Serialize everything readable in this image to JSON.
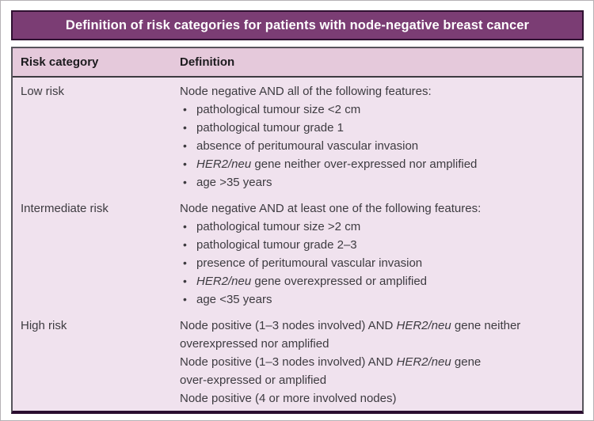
{
  "title": "Definition of risk categories for patients with node-negative breast cancer",
  "table": {
    "headers": {
      "category": "Risk category",
      "definition": "Definition"
    },
    "rows": [
      {
        "category": "Low risk",
        "lines": [
          {
            "type": "text",
            "segments": [
              {
                "text": "Node negative AND all of the following features:"
              }
            ]
          },
          {
            "type": "bullet",
            "segments": [
              {
                "text": "pathological tumour size <2 cm"
              }
            ]
          },
          {
            "type": "bullet",
            "segments": [
              {
                "text": "pathological tumour grade 1"
              }
            ]
          },
          {
            "type": "bullet",
            "segments": [
              {
                "text": "absence of peritumoural vascular invasion"
              }
            ]
          },
          {
            "type": "bullet",
            "segments": [
              {
                "text": "HER2/neu",
                "italic": true
              },
              {
                "text": " gene neither over-expressed nor amplified"
              }
            ]
          },
          {
            "type": "bullet",
            "segments": [
              {
                "text": "age >35 years"
              }
            ]
          }
        ]
      },
      {
        "category": "Intermediate risk",
        "lines": [
          {
            "type": "text",
            "segments": [
              {
                "text": "Node negative AND at least one of the following features:"
              }
            ]
          },
          {
            "type": "bullet",
            "segments": [
              {
                "text": "pathological tumour size >2 cm"
              }
            ]
          },
          {
            "type": "bullet",
            "segments": [
              {
                "text": "pathological tumour grade 2–3"
              }
            ]
          },
          {
            "type": "bullet",
            "segments": [
              {
                "text": "presence of peritumoural vascular invasion"
              }
            ]
          },
          {
            "type": "bullet",
            "segments": [
              {
                "text": "HER2/neu",
                "italic": true
              },
              {
                "text": " gene overexpressed or amplified"
              }
            ]
          },
          {
            "type": "bullet",
            "segments": [
              {
                "text": "age <35 years"
              }
            ]
          }
        ]
      },
      {
        "category": "High risk",
        "lines": [
          {
            "type": "text",
            "segments": [
              {
                "text": "Node positive (1–3 nodes involved) AND "
              },
              {
                "text": "HER2/neu",
                "italic": true
              },
              {
                "text": " gene neither"
              }
            ]
          },
          {
            "type": "text",
            "segments": [
              {
                "text": "overexpressed nor amplified"
              }
            ]
          },
          {
            "type": "text",
            "segments": [
              {
                "text": "Node positive (1–3 nodes involved) AND "
              },
              {
                "text": "HER2/neu",
                "italic": true
              },
              {
                "text": " gene"
              }
            ]
          },
          {
            "type": "text",
            "segments": [
              {
                "text": "over-expressed or amplified"
              }
            ]
          },
          {
            "type": "text",
            "segments": [
              {
                "text": "Node positive (4 or more involved nodes)"
              }
            ]
          }
        ]
      }
    ]
  },
  "icons": {
    "bullet": "•"
  },
  "colors": {
    "title_bar_bg": "#7b3d74",
    "title_bar_border": "#2f1031",
    "title_text": "#ffffff",
    "table_bg": "#f0e2ee",
    "header_row_bg": "#e5c9db",
    "header_rule": "#3c3a40",
    "table_border": "#57555c",
    "table_bottom_border": "#2a0d2f",
    "body_text": "#3d3b40"
  }
}
